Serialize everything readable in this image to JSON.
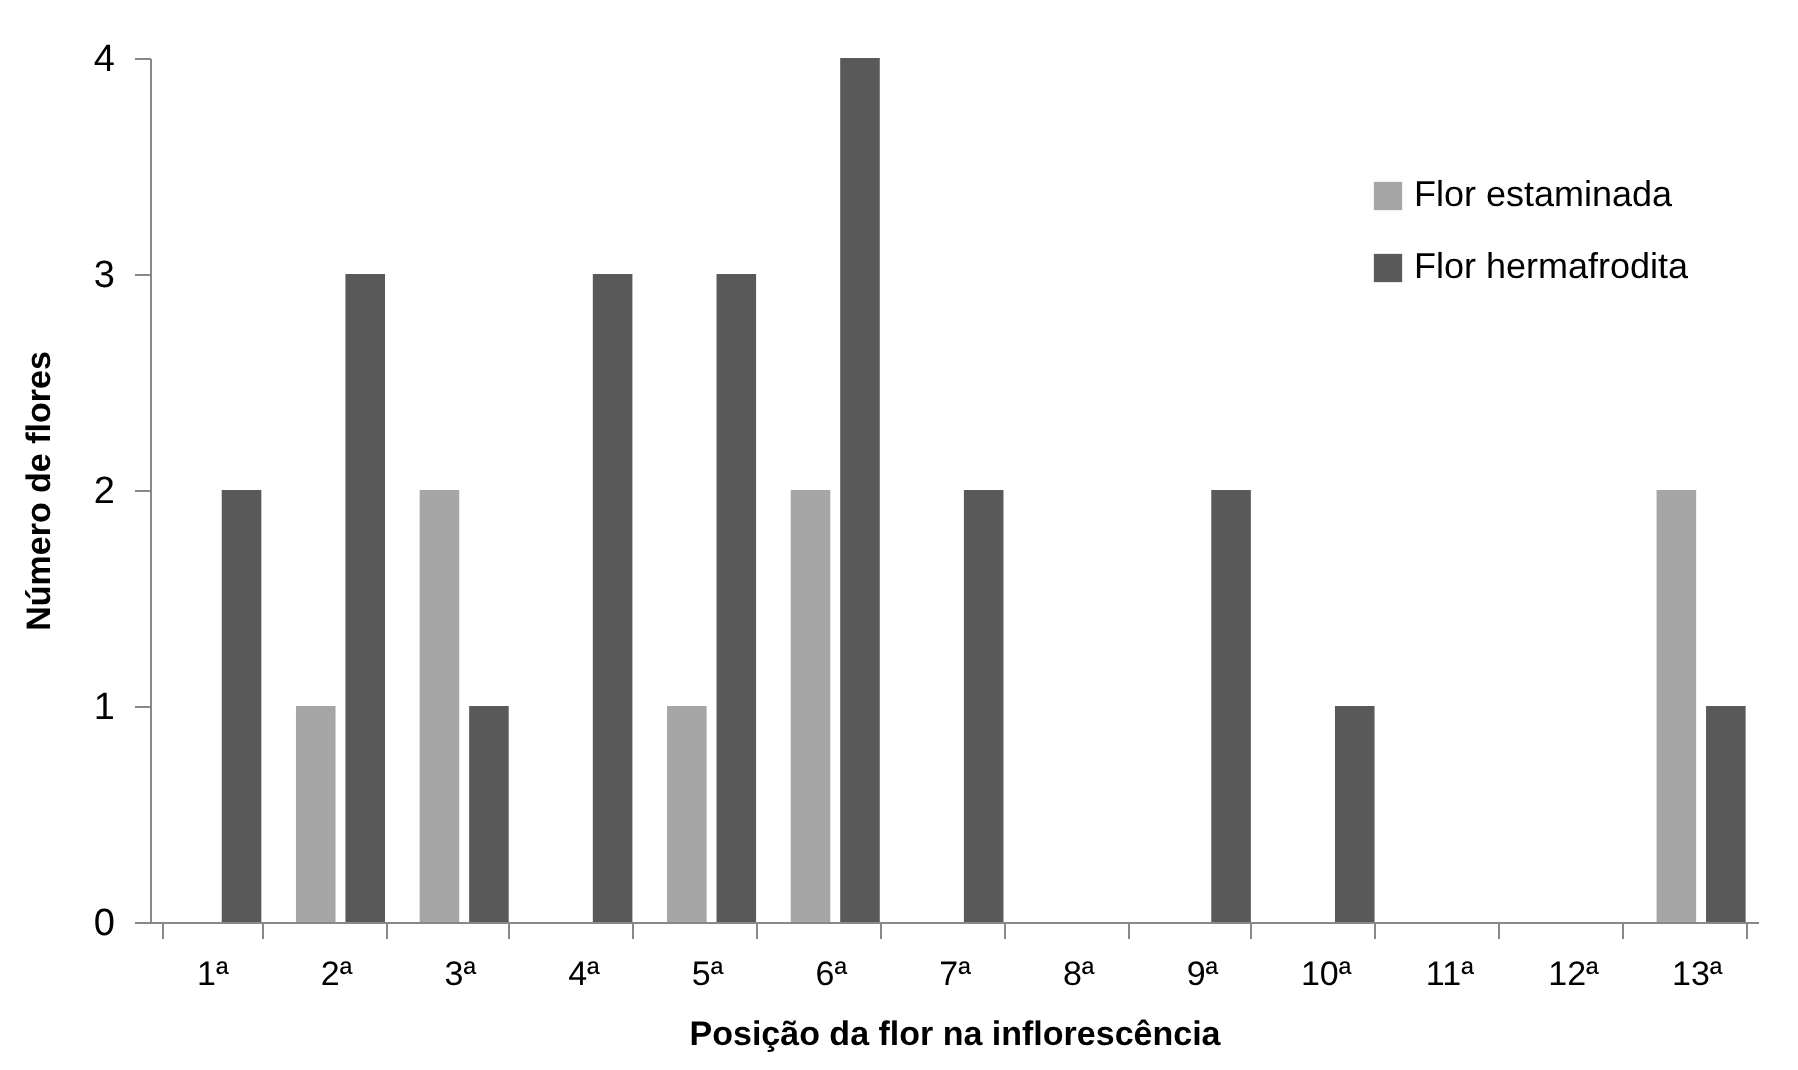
{
  "chart_data": {
    "type": "bar",
    "xlabel": "Posição da flor na inflorescência",
    "ylabel": "Número de flores",
    "categories": [
      "1ª",
      "2ª",
      "3ª",
      "4ª",
      "5ª",
      "6ª",
      "7ª",
      "8ª",
      "9ª",
      "10ª",
      "11ª",
      "12ª",
      "13ª"
    ],
    "series": [
      {
        "name": "Flor estaminada",
        "color": "#a6a6a6",
        "values": [
          0,
          1,
          2,
          0,
          1,
          2,
          0,
          0,
          0,
          0,
          0,
          0,
          2
        ]
      },
      {
        "name": "Flor hermafrodita",
        "color": "#595959",
        "values": [
          2,
          3,
          1,
          3,
          3,
          4,
          2,
          0,
          2,
          1,
          0,
          0,
          1
        ]
      }
    ],
    "ylim": [
      0,
      4
    ],
    "yticks": [
      0,
      1,
      2,
      3,
      4
    ],
    "grid": false,
    "legend": "top right"
  }
}
